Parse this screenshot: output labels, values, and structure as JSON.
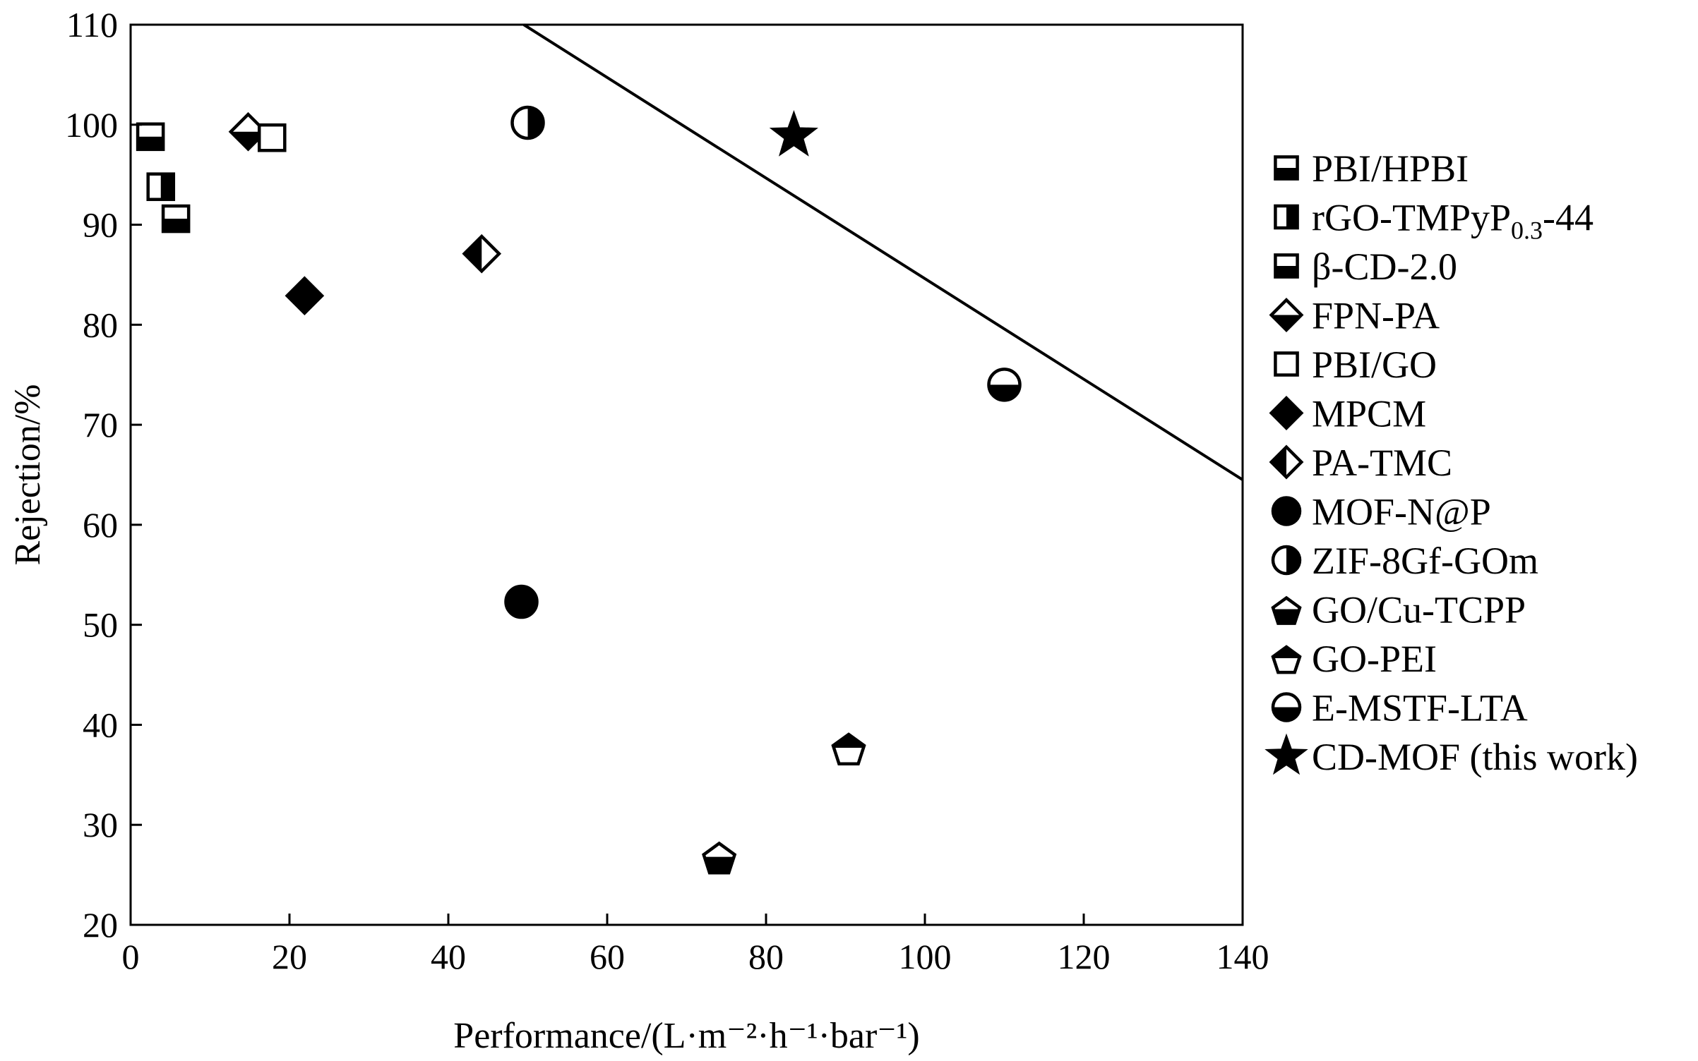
{
  "chart_data": {
    "type": "scatter",
    "title": "",
    "xlabel": "Performance/(L·m⁻²·h⁻¹·bar⁻¹)",
    "ylabel": "Rejection/%",
    "xlim": [
      0,
      140
    ],
    "ylim": [
      20,
      110
    ],
    "x_ticks": [
      "0",
      "20",
      "40",
      "60",
      "80",
      "100",
      "120",
      "140"
    ],
    "y_ticks": [
      "20",
      "30",
      "40",
      "50",
      "60",
      "70",
      "80",
      "90",
      "100",
      "110"
    ],
    "grid": false,
    "legend_position": "right",
    "series": [
      {
        "name": "PBI/HPBI",
        "marker": "square-half-bottom",
        "x": 2.5,
        "y": 98.8
      },
      {
        "name": "rGO-TMPyP0.3-44",
        "marker": "square-half-right",
        "x": 3.8,
        "y": 93.8
      },
      {
        "name": "β-CD-2.0",
        "marker": "square-half-bottom",
        "x": 5.7,
        "y": 90.6
      },
      {
        "name": "FPN-PA",
        "marker": "diamond-half-bottom",
        "x": 14.8,
        "y": 99.3
      },
      {
        "name": "PBI/GO",
        "marker": "square-open",
        "x": 17.8,
        "y": 98.7
      },
      {
        "name": "MPCM",
        "marker": "diamond-filled",
        "x": 21.9,
        "y": 82.9
      },
      {
        "name": "PA-TMC",
        "marker": "diamond-half-left",
        "x": 44.2,
        "y": 87.1
      },
      {
        "name": "MOF-N@P",
        "marker": "circle-filled",
        "x": 49.2,
        "y": 52.3
      },
      {
        "name": "ZIF-8Gf-GOm",
        "marker": "circle-half-right",
        "x": 50.0,
        "y": 100.2
      },
      {
        "name": "GO/Cu-TCPP",
        "marker": "pentagon-half-bottom",
        "x": 74.1,
        "y": 26.8
      },
      {
        "name": "GO-PEI",
        "marker": "pentagon-half-top",
        "x": 90.4,
        "y": 37.7
      },
      {
        "name": "E-MSTF-LTA",
        "marker": "circle-half-bottom",
        "x": 110.0,
        "y": 74.0
      },
      {
        "name": "CD-MOF (this work)",
        "marker": "star-filled",
        "x": 83.5,
        "y": 98.9
      }
    ],
    "trend_line": {
      "x": [
        49.5,
        140
      ],
      "y": [
        110,
        64.5
      ]
    }
  },
  "legend_entries": [
    {
      "base": "PBI/HPBI",
      "sub": "",
      "tail": ""
    },
    {
      "base": "rGO-TMPyP",
      "sub": "0.3",
      "tail": "-44"
    },
    {
      "base": "β-CD-2.0",
      "sub": "",
      "tail": ""
    },
    {
      "base": "FPN-PA",
      "sub": "",
      "tail": ""
    },
    {
      "base": "PBI/GO",
      "sub": "",
      "tail": ""
    },
    {
      "base": "MPCM",
      "sub": "",
      "tail": ""
    },
    {
      "base": "PA-TMC",
      "sub": "",
      "tail": ""
    },
    {
      "base": "MOF-N@P",
      "sub": "",
      "tail": ""
    },
    {
      "base": "ZIF-8Gf-GOm",
      "sub": "",
      "tail": ""
    },
    {
      "base": "GO/Cu-TCPP",
      "sub": "",
      "tail": ""
    },
    {
      "base": "GO-PEI",
      "sub": "",
      "tail": ""
    },
    {
      "base": "E-MSTF-LTA",
      "sub": "",
      "tail": ""
    },
    {
      "base": "CD-MOF (this work)",
      "sub": "",
      "tail": ""
    }
  ]
}
